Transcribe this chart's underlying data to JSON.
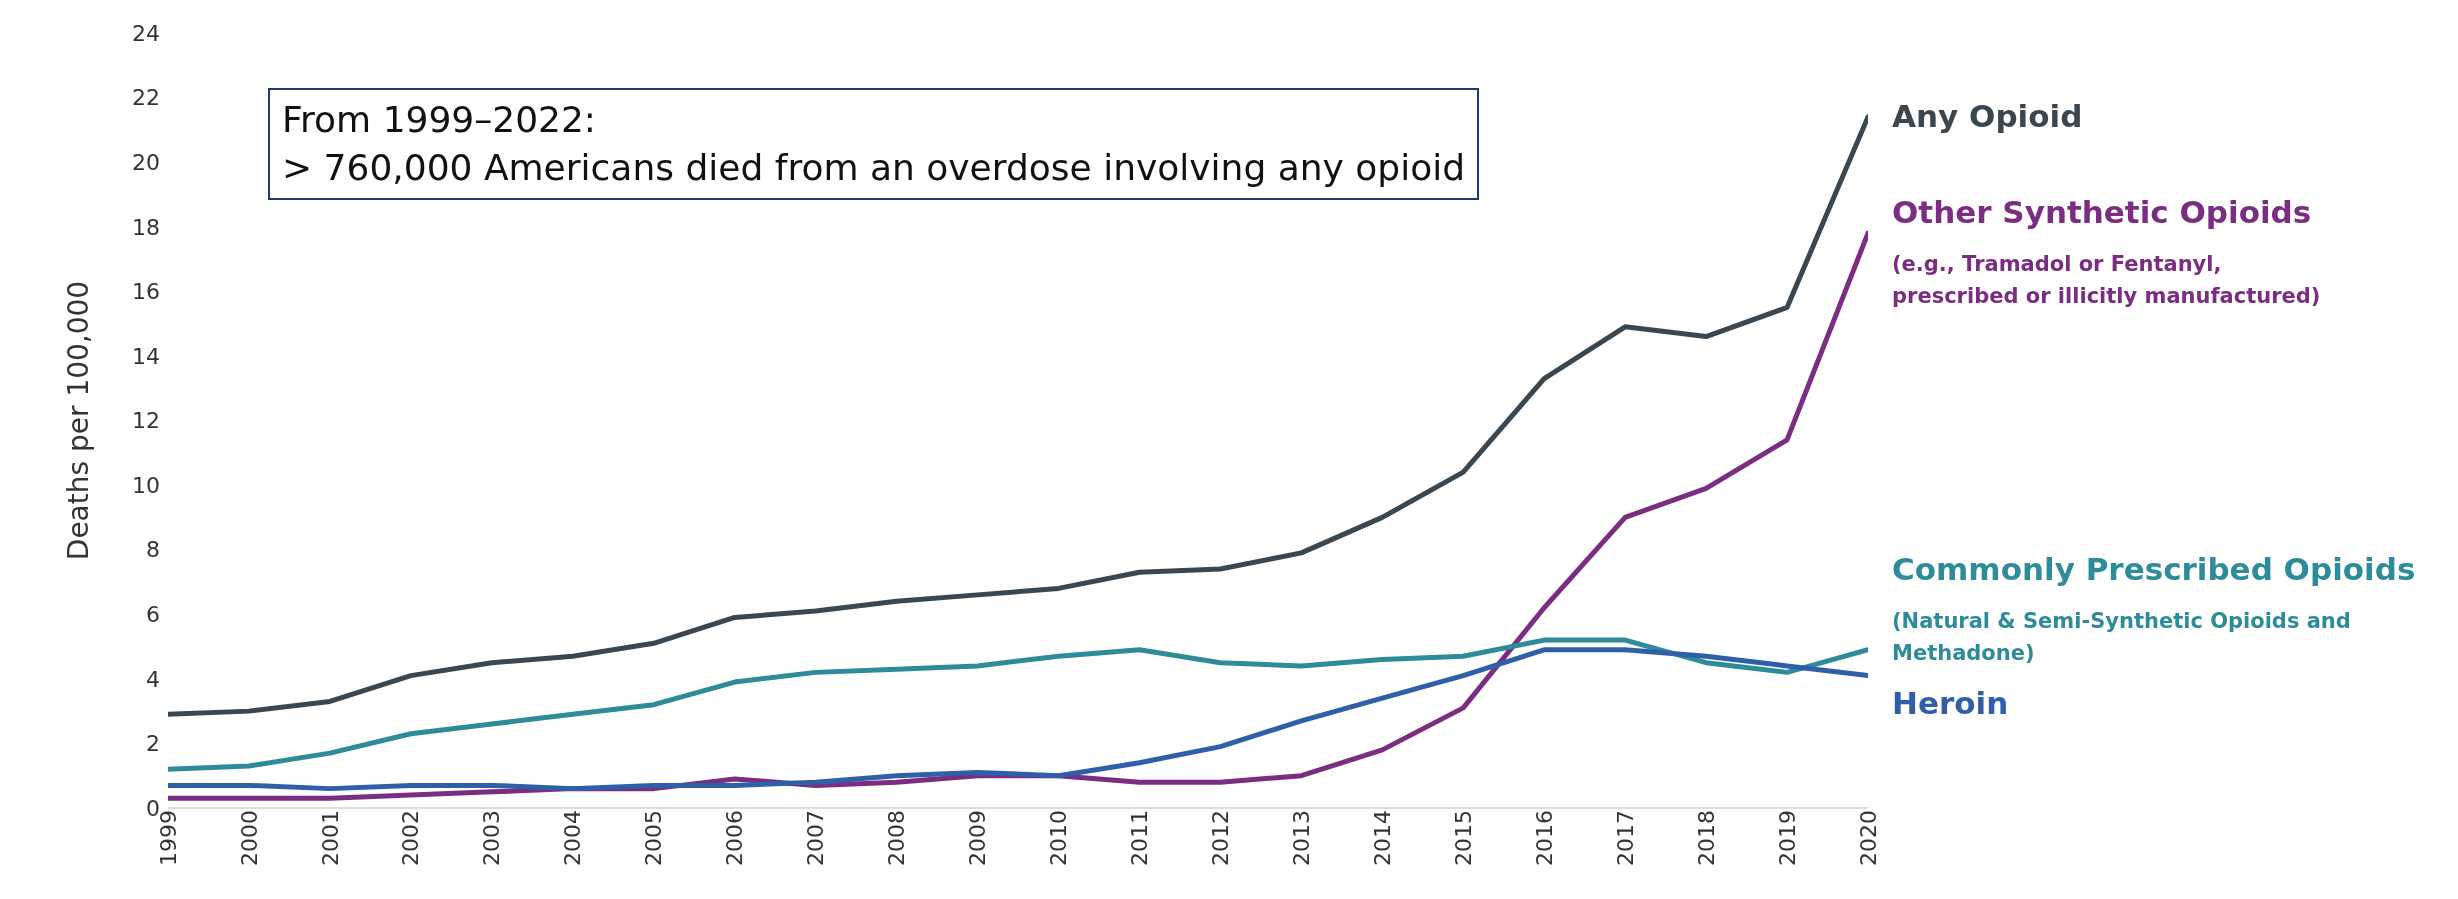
{
  "chart_data": {
    "type": "line",
    "ylabel": "Deaths per 100,000",
    "x": [
      1999,
      2000,
      2001,
      2002,
      2003,
      2004,
      2005,
      2006,
      2007,
      2008,
      2009,
      2010,
      2011,
      2012,
      2013,
      2014,
      2015,
      2016,
      2017,
      2018,
      2019,
      2020
    ],
    "xlim": [
      1999,
      2020
    ],
    "xticks": [
      1999,
      2000,
      2001,
      2002,
      2003,
      2004,
      2005,
      2006,
      2007,
      2008,
      2009,
      2010,
      2011,
      2012,
      2013,
      2014,
      2015,
      2016,
      2017,
      2018,
      2019,
      2020
    ],
    "ylim": [
      0,
      24
    ],
    "yticks": [
      0,
      2,
      4,
      6,
      8,
      10,
      12,
      14,
      16,
      18,
      20,
      22,
      24
    ],
    "grid": false,
    "legend": false,
    "marker": "none",
    "line_style": "solid",
    "series": [
      {
        "name": "Any Opioid",
        "color": "#3a4750",
        "values": [
          2.9,
          3.0,
          3.3,
          4.1,
          4.5,
          4.7,
          5.1,
          5.9,
          6.1,
          6.4,
          6.6,
          6.8,
          7.3,
          7.4,
          7.9,
          9.0,
          10.4,
          13.3,
          14.9,
          14.6,
          15.5,
          21.4
        ]
      },
      {
        "name": "Other Synthetic Opioids",
        "color": "#7b2d82",
        "values": [
          0.3,
          0.3,
          0.3,
          0.4,
          0.5,
          0.6,
          0.6,
          0.9,
          0.7,
          0.8,
          1.0,
          1.0,
          0.8,
          0.8,
          1.0,
          1.8,
          3.1,
          6.2,
          9.0,
          9.9,
          11.4,
          17.8
        ]
      },
      {
        "name": "Commonly Prescribed Opioids",
        "color": "#2e8b9a",
        "values": [
          1.2,
          1.3,
          1.7,
          2.3,
          2.6,
          2.9,
          3.2,
          3.9,
          4.2,
          4.3,
          4.4,
          4.7,
          4.9,
          4.5,
          4.4,
          4.6,
          4.7,
          5.2,
          5.2,
          4.5,
          4.2,
          4.9
        ]
      },
      {
        "name": "Heroin",
        "color": "#2f5fa8",
        "values": [
          0.7,
          0.7,
          0.6,
          0.7,
          0.7,
          0.6,
          0.7,
          0.7,
          0.8,
          1.0,
          1.1,
          1.0,
          1.4,
          1.9,
          2.7,
          3.4,
          4.1,
          4.9,
          4.9,
          4.7,
          4.4,
          4.1
        ]
      }
    ],
    "annotations": [
      "From 1999–2022:",
      "> 760,000 Americans died from an overdose involving any opioid",
      {
        "text": "(e.g., Tramadol or Fentanyl, prescribed or illicitly manufactured)",
        "x": 2020,
        "y": 17.8
      },
      {
        "text": "(Natural & Semi-Synthetic Opioids and Methadone)",
        "x": 2020,
        "y": 4.9
      }
    ]
  }
}
